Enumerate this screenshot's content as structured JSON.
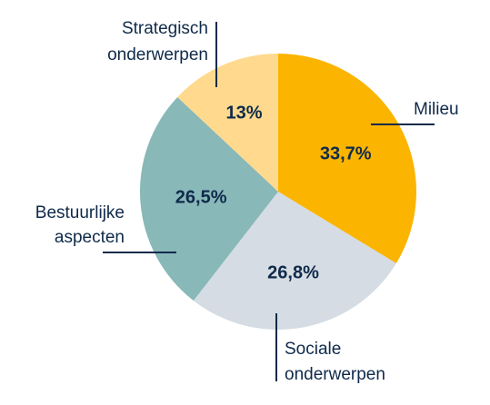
{
  "chart_data": {
    "type": "pie",
    "title": "",
    "slices": [
      {
        "label": "Milieu",
        "value": 33.7,
        "value_label": "33,7%",
        "color": "#FBB400"
      },
      {
        "label": "Sociale onderwerpen",
        "value": 26.8,
        "value_label": "26,8%",
        "color": "#D5DCE3"
      },
      {
        "label": "Bestuurlijke aspecten",
        "value": 26.5,
        "value_label": "26,5%",
        "color": "#88B8B8"
      },
      {
        "label": "Strategisch onderwerpen",
        "value": 13,
        "value_label": "13%",
        "color": "#FFD98E"
      }
    ],
    "start_angle": "top",
    "direction": "clockwise",
    "legend": "none",
    "label_text_color": "#0F2A4A"
  }
}
